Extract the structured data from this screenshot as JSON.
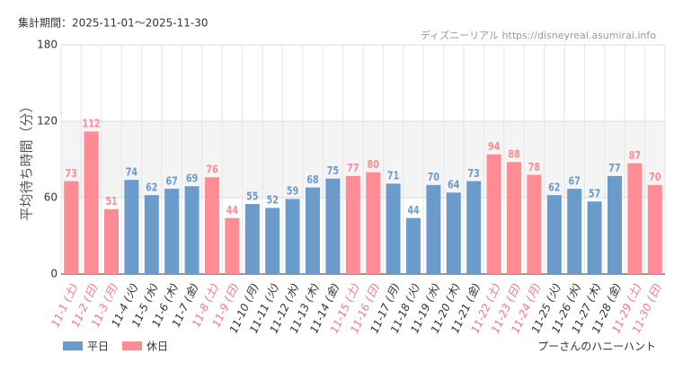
{
  "chart_data": {
    "type": "bar",
    "header": "集計期間：2025-11-01～2025-11-30",
    "source": "ディズニーリアル https://disneyreal.asumirai.info",
    "subtitle": "プーさんのハニーハント",
    "y_label": "平均待ち時間（分）",
    "categories": [
      "11-1 (土)",
      "11-2 (日)",
      "11-3 (月)",
      "11-4 (火)",
      "11-5 (水)",
      "11-6 (木)",
      "11-7 (金)",
      "11-8 (土)",
      "11-9 (日)",
      "11-10 (月)",
      "11-11 (火)",
      "11-12 (水)",
      "11-13 (木)",
      "11-14 (金)",
      "11-15 (土)",
      "11-16 (日)",
      "11-17 (月)",
      "11-18 (火)",
      "11-19 (水)",
      "11-20 (木)",
      "11-21 (金)",
      "11-22 (土)",
      "11-23 (日)",
      "11-24 (月)",
      "11-25 (火)",
      "11-26 (水)",
      "11-27 (木)",
      "11-28 (金)",
      "11-29 (土)",
      "11-30 (日)"
    ],
    "series": [
      {
        "name": "平日",
        "color": "#6b9bcb",
        "values": [
          null,
          null,
          null,
          74,
          62,
          67,
          69,
          null,
          null,
          55,
          52,
          59,
          68,
          75,
          null,
          null,
          71,
          44,
          70,
          64,
          73,
          null,
          null,
          null,
          62,
          67,
          57,
          77,
          null,
          null
        ]
      },
      {
        "name": "休日",
        "color": "#ff8c94",
        "values": [
          73,
          112,
          51,
          null,
          null,
          null,
          null,
          76,
          44,
          null,
          null,
          null,
          null,
          null,
          77,
          80,
          null,
          null,
          null,
          null,
          null,
          94,
          88,
          78,
          null,
          null,
          null,
          null,
          87,
          70
        ]
      }
    ],
    "ylim": [
      0,
      180
    ],
    "yticks": [
      0,
      60,
      120,
      180
    ],
    "grid": true
  }
}
